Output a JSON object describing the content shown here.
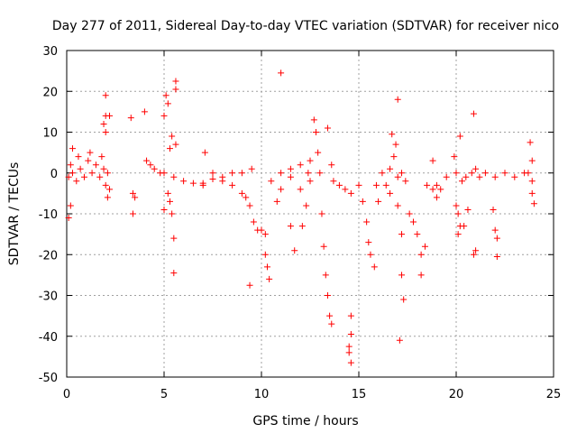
{
  "chart_data": {
    "type": "scatter",
    "title": "Day 277 of 2011, Sidereal Day-to-day VTEC variation (SDTVAR) for receiver nico",
    "xlabel": "GPS time / hours",
    "ylabel": "SDTVAR / TECUs",
    "xlim": [
      0,
      25
    ],
    "ylim": [
      -50,
      30
    ],
    "xticks": [
      0,
      5,
      10,
      15,
      20,
      25
    ],
    "yticks": [
      -50,
      -40,
      -30,
      -20,
      -10,
      0,
      10,
      20,
      30
    ],
    "grid": true,
    "marker": "+",
    "series_color": "#ff0000",
    "series": [
      {
        "name": "SDTVAR",
        "points": [
          [
            0.1,
            -1
          ],
          [
            0.2,
            2
          ],
          [
            0.3,
            0
          ],
          [
            0.5,
            -2
          ],
          [
            0.7,
            1
          ],
          [
            0.9,
            -1
          ],
          [
            1.1,
            3
          ],
          [
            1.3,
            0
          ],
          [
            1.5,
            2
          ],
          [
            1.7,
            -1
          ],
          [
            1.9,
            1
          ],
          [
            2.1,
            0
          ],
          [
            0.1,
            -11
          ],
          [
            0.2,
            -8
          ],
          [
            0.3,
            6
          ],
          [
            0.6,
            4
          ],
          [
            1.2,
            5
          ],
          [
            1.8,
            4
          ],
          [
            2.0,
            19
          ],
          [
            2.0,
            14
          ],
          [
            1.9,
            12
          ],
          [
            2.2,
            14
          ],
          [
            2.0,
            10
          ],
          [
            2.0,
            -3
          ],
          [
            2.1,
            -6
          ],
          [
            2.2,
            -4
          ],
          [
            3.3,
            13.5
          ],
          [
            3.4,
            -5
          ],
          [
            3.5,
            -6
          ],
          [
            3.4,
            -10
          ],
          [
            4.0,
            15
          ],
          [
            4.1,
            3
          ],
          [
            4.3,
            2
          ],
          [
            4.5,
            1
          ],
          [
            4.8,
            0
          ],
          [
            5.0,
            0
          ],
          [
            5.1,
            19
          ],
          [
            5.2,
            17
          ],
          [
            5.0,
            14
          ],
          [
            5.4,
            9
          ],
          [
            5.3,
            6
          ],
          [
            5.0,
            -9
          ],
          [
            5.2,
            -5
          ],
          [
            5.3,
            -7
          ],
          [
            5.4,
            -10
          ],
          [
            5.5,
            -16
          ],
          [
            5.5,
            -24.5
          ],
          [
            5.6,
            22.5
          ],
          [
            5.6,
            20.5
          ],
          [
            5.6,
            7
          ],
          [
            5.5,
            -1
          ],
          [
            6.0,
            -2
          ],
          [
            6.5,
            -2.5
          ],
          [
            7.0,
            -2.5
          ],
          [
            7.1,
            5
          ],
          [
            7.5,
            0
          ],
          [
            8.0,
            -1
          ],
          [
            8.5,
            0
          ],
          [
            9.0,
            0
          ],
          [
            9.5,
            1
          ],
          [
            7.0,
            -3
          ],
          [
            7.5,
            -1.5
          ],
          [
            8.0,
            -2
          ],
          [
            8.5,
            -3
          ],
          [
            9.0,
            -5
          ],
          [
            9.2,
            -6
          ],
          [
            9.4,
            -8
          ],
          [
            9.6,
            -12
          ],
          [
            9.8,
            -14
          ],
          [
            10.0,
            -14
          ],
          [
            10.2,
            -15
          ],
          [
            10.2,
            -20
          ],
          [
            10.3,
            -23
          ],
          [
            10.4,
            -26
          ],
          [
            9.4,
            -27.5
          ],
          [
            10.5,
            -2
          ],
          [
            11.0,
            0
          ],
          [
            11.5,
            1
          ],
          [
            12.0,
            2
          ],
          [
            12.5,
            3
          ],
          [
            12.0,
            -4
          ],
          [
            12.5,
            -2
          ],
          [
            11.5,
            -1
          ],
          [
            11.0,
            -4
          ],
          [
            10.8,
            -7
          ],
          [
            11.0,
            24.5
          ],
          [
            11.5,
            -13
          ],
          [
            11.7,
            -19
          ],
          [
            12.1,
            -13
          ],
          [
            12.3,
            -8
          ],
          [
            12.4,
            0
          ],
          [
            12.7,
            13
          ],
          [
            12.8,
            10
          ],
          [
            12.9,
            5
          ],
          [
            13.0,
            0
          ],
          [
            13.1,
            -10
          ],
          [
            13.2,
            -18
          ],
          [
            13.3,
            -25
          ],
          [
            13.4,
            -30
          ],
          [
            13.5,
            -35
          ],
          [
            13.6,
            -37
          ],
          [
            13.4,
            11
          ],
          [
            13.6,
            2
          ],
          [
            13.7,
            -2
          ],
          [
            14.0,
            -3
          ],
          [
            14.3,
            -4
          ],
          [
            14.6,
            -5
          ],
          [
            14.6,
            -35
          ],
          [
            14.6,
            -39.5
          ],
          [
            14.5,
            -42.5
          ],
          [
            14.5,
            -44
          ],
          [
            14.6,
            -46.5
          ],
          [
            15.0,
            -3
          ],
          [
            15.2,
            -7
          ],
          [
            15.4,
            -12
          ],
          [
            15.5,
            -17
          ],
          [
            15.6,
            -20
          ],
          [
            15.8,
            -23
          ],
          [
            15.9,
            -3
          ],
          [
            16.0,
            -7
          ],
          [
            16.2,
            0
          ],
          [
            16.4,
            -3
          ],
          [
            16.6,
            -5
          ],
          [
            16.6,
            1
          ],
          [
            17.0,
            -1
          ],
          [
            17.2,
            0
          ],
          [
            17.4,
            -2
          ],
          [
            16.7,
            9.5
          ],
          [
            16.9,
            7
          ],
          [
            17.0,
            18
          ],
          [
            16.8,
            4
          ],
          [
            17.0,
            -8
          ],
          [
            17.2,
            -15
          ],
          [
            17.2,
            -25
          ],
          [
            17.3,
            -31
          ],
          [
            17.1,
            -41
          ],
          [
            17.6,
            -10
          ],
          [
            17.8,
            -12
          ],
          [
            18.0,
            -15
          ],
          [
            18.2,
            -20
          ],
          [
            18.2,
            -25
          ],
          [
            18.4,
            -18
          ],
          [
            18.5,
            -3
          ],
          [
            18.8,
            -4
          ],
          [
            19.0,
            -3
          ],
          [
            19.2,
            -4
          ],
          [
            18.8,
            3
          ],
          [
            19.0,
            -6
          ],
          [
            19.5,
            -1
          ],
          [
            20.0,
            0
          ],
          [
            20.3,
            -2
          ],
          [
            20.5,
            -1
          ],
          [
            20.8,
            0
          ],
          [
            21.0,
            1
          ],
          [
            21.2,
            -1
          ],
          [
            21.5,
            0
          ],
          [
            22.0,
            -1
          ],
          [
            22.5,
            0
          ],
          [
            23.0,
            -1
          ],
          [
            23.5,
            0
          ],
          [
            23.9,
            -2
          ],
          [
            19.9,
            4
          ],
          [
            20.2,
            9
          ],
          [
            20.9,
            14.5
          ],
          [
            20.0,
            -8
          ],
          [
            20.1,
            -10
          ],
          [
            20.2,
            -13
          ],
          [
            20.1,
            -15
          ],
          [
            20.4,
            -13
          ],
          [
            20.6,
            -9
          ],
          [
            20.9,
            -20
          ],
          [
            21.0,
            -19
          ],
          [
            22.0,
            -14
          ],
          [
            22.1,
            -16
          ],
          [
            22.1,
            -20.5
          ],
          [
            21.9,
            -9
          ],
          [
            23.8,
            7.5
          ],
          [
            23.9,
            3
          ],
          [
            23.9,
            -5
          ],
          [
            24.0,
            -7.5
          ],
          [
            23.7,
            0
          ]
        ]
      }
    ]
  }
}
